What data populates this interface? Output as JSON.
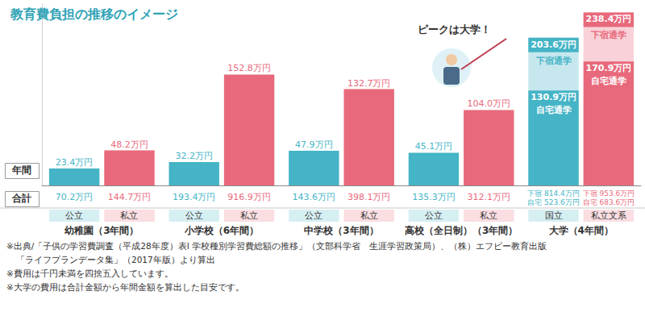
{
  "chart_data": {
    "type": "bar",
    "title": "教育費負担の推移のイメージ",
    "annotation": "ピークは大学！",
    "row_labels": [
      "年間",
      "合計"
    ],
    "categories": [
      "幼稚園（3年間）",
      "小学校（6年間）",
      "中学校（3年間）",
      "高校（全日制）（3年間）",
      "大学（4年間）"
    ],
    "ylim": [
      0,
      250
    ],
    "grid": false,
    "tick_labels": "x",
    "data_labels": true,
    "series": [
      {
        "name": "公立",
        "color": "#45b4c6",
        "values": [
          23.4,
          32.2,
          47.9,
          45.1,
          null
        ],
        "value_labels": [
          "23.4万円",
          "32.2万円",
          "47.9万円",
          "45.1万円",
          null
        ],
        "totals": [
          70.2,
          193.4,
          143.6,
          135.3,
          null
        ],
        "total_labels": [
          "70.2万円",
          "193.4万円",
          "143.6万円",
          "135.3万円",
          null
        ]
      },
      {
        "name": "私立",
        "color": "#e8697b",
        "values": [
          48.2,
          152.8,
          132.7,
          104.0,
          null
        ],
        "value_labels": [
          "48.2万円",
          "152.8万円",
          "132.7万円",
          "104.0万円",
          null
        ],
        "totals": [
          144.7,
          916.9,
          398.1,
          312.1,
          null
        ],
        "total_labels": [
          "144.7万円",
          "916.9万円",
          "398.1万円",
          "312.1万円",
          null
        ]
      },
      {
        "name": "国立",
        "segment": "下宿通学",
        "color": "#c6e7ee",
        "values": [
          null,
          null,
          null,
          null,
          203.6
        ],
        "value_labels": [
          null,
          null,
          null,
          null,
          "203.6万円"
        ],
        "totals": [
          null,
          null,
          null,
          null,
          814.4
        ],
        "total_labels": [
          null,
          null,
          null,
          null,
          "下宿 814.4万円"
        ]
      },
      {
        "name": "国立",
        "segment": "自宅通学",
        "color": "#45b4c6",
        "values": [
          null,
          null,
          null,
          null,
          130.9
        ],
        "value_labels": [
          null,
          null,
          null,
          null,
          "130.9万円"
        ],
        "totals": [
          null,
          null,
          null,
          null,
          523.6
        ],
        "total_labels": [
          null,
          null,
          null,
          null,
          "自宅 523.6万円"
        ]
      },
      {
        "name": "私立文系",
        "segment": "下宿通学",
        "color": "#f8d2d8",
        "values": [
          null,
          null,
          null,
          null,
          238.4
        ],
        "value_labels": [
          null,
          null,
          null,
          null,
          "238.4万円"
        ],
        "totals": [
          null,
          null,
          null,
          null,
          953.6
        ],
        "total_labels": [
          null,
          null,
          null,
          null,
          "下宿 953.6万円"
        ]
      },
      {
        "name": "私立文系",
        "segment": "自宅通学",
        "color": "#e8697b",
        "values": [
          null,
          null,
          null,
          null,
          170.9
        ],
        "value_labels": [
          null,
          null,
          null,
          null,
          "170.9万円"
        ],
        "totals": [
          null,
          null,
          null,
          null,
          683.6
        ],
        "total_labels": [
          null,
          null,
          null,
          null,
          "自宅 683.6万円"
        ]
      }
    ],
    "notes": [
      [
        "※出典/「子供の学習費調査（平成28年度）表I 学校種別学習費総額の推移」（文部科学省　生涯学習政策局）、（株）エフピー教育出版",
        "「ライフプランデータ集」（2017年版）より算出"
      ],
      [
        "※費用は千円未満を四捨五入しています。"
      ],
      [
        "※大学の費用は合計金額から年間金額を算出した目安です。"
      ]
    ]
  }
}
